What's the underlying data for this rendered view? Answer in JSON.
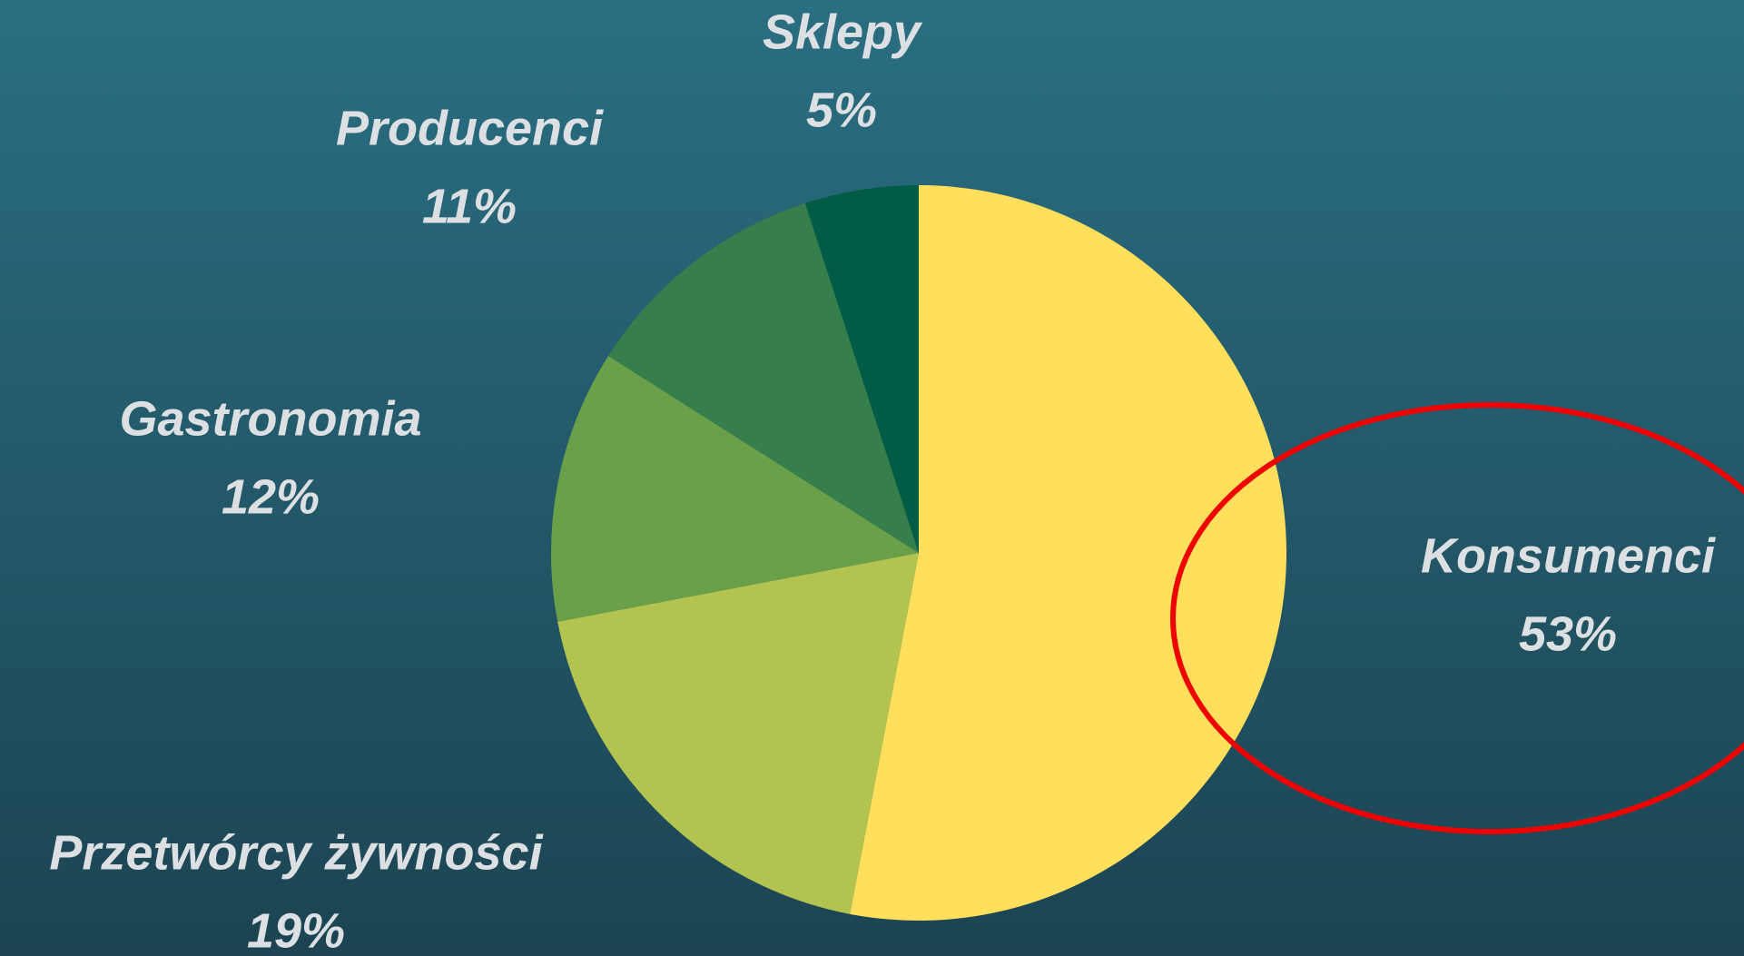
{
  "chart_data": {
    "type": "pie",
    "categories": [
      "Konsumenci",
      "Przetwórcy żywności",
      "Gastronomia",
      "Producenci",
      "Sklepy"
    ],
    "values": [
      53,
      19,
      12,
      11,
      5
    ],
    "value_labels": [
      "53%",
      "19%",
      "12%",
      "11%",
      "5%"
    ],
    "colors": [
      "#FFDF5C",
      "#B2C350",
      "#6BA04A",
      "#367E4B",
      "#005C45"
    ]
  }
}
